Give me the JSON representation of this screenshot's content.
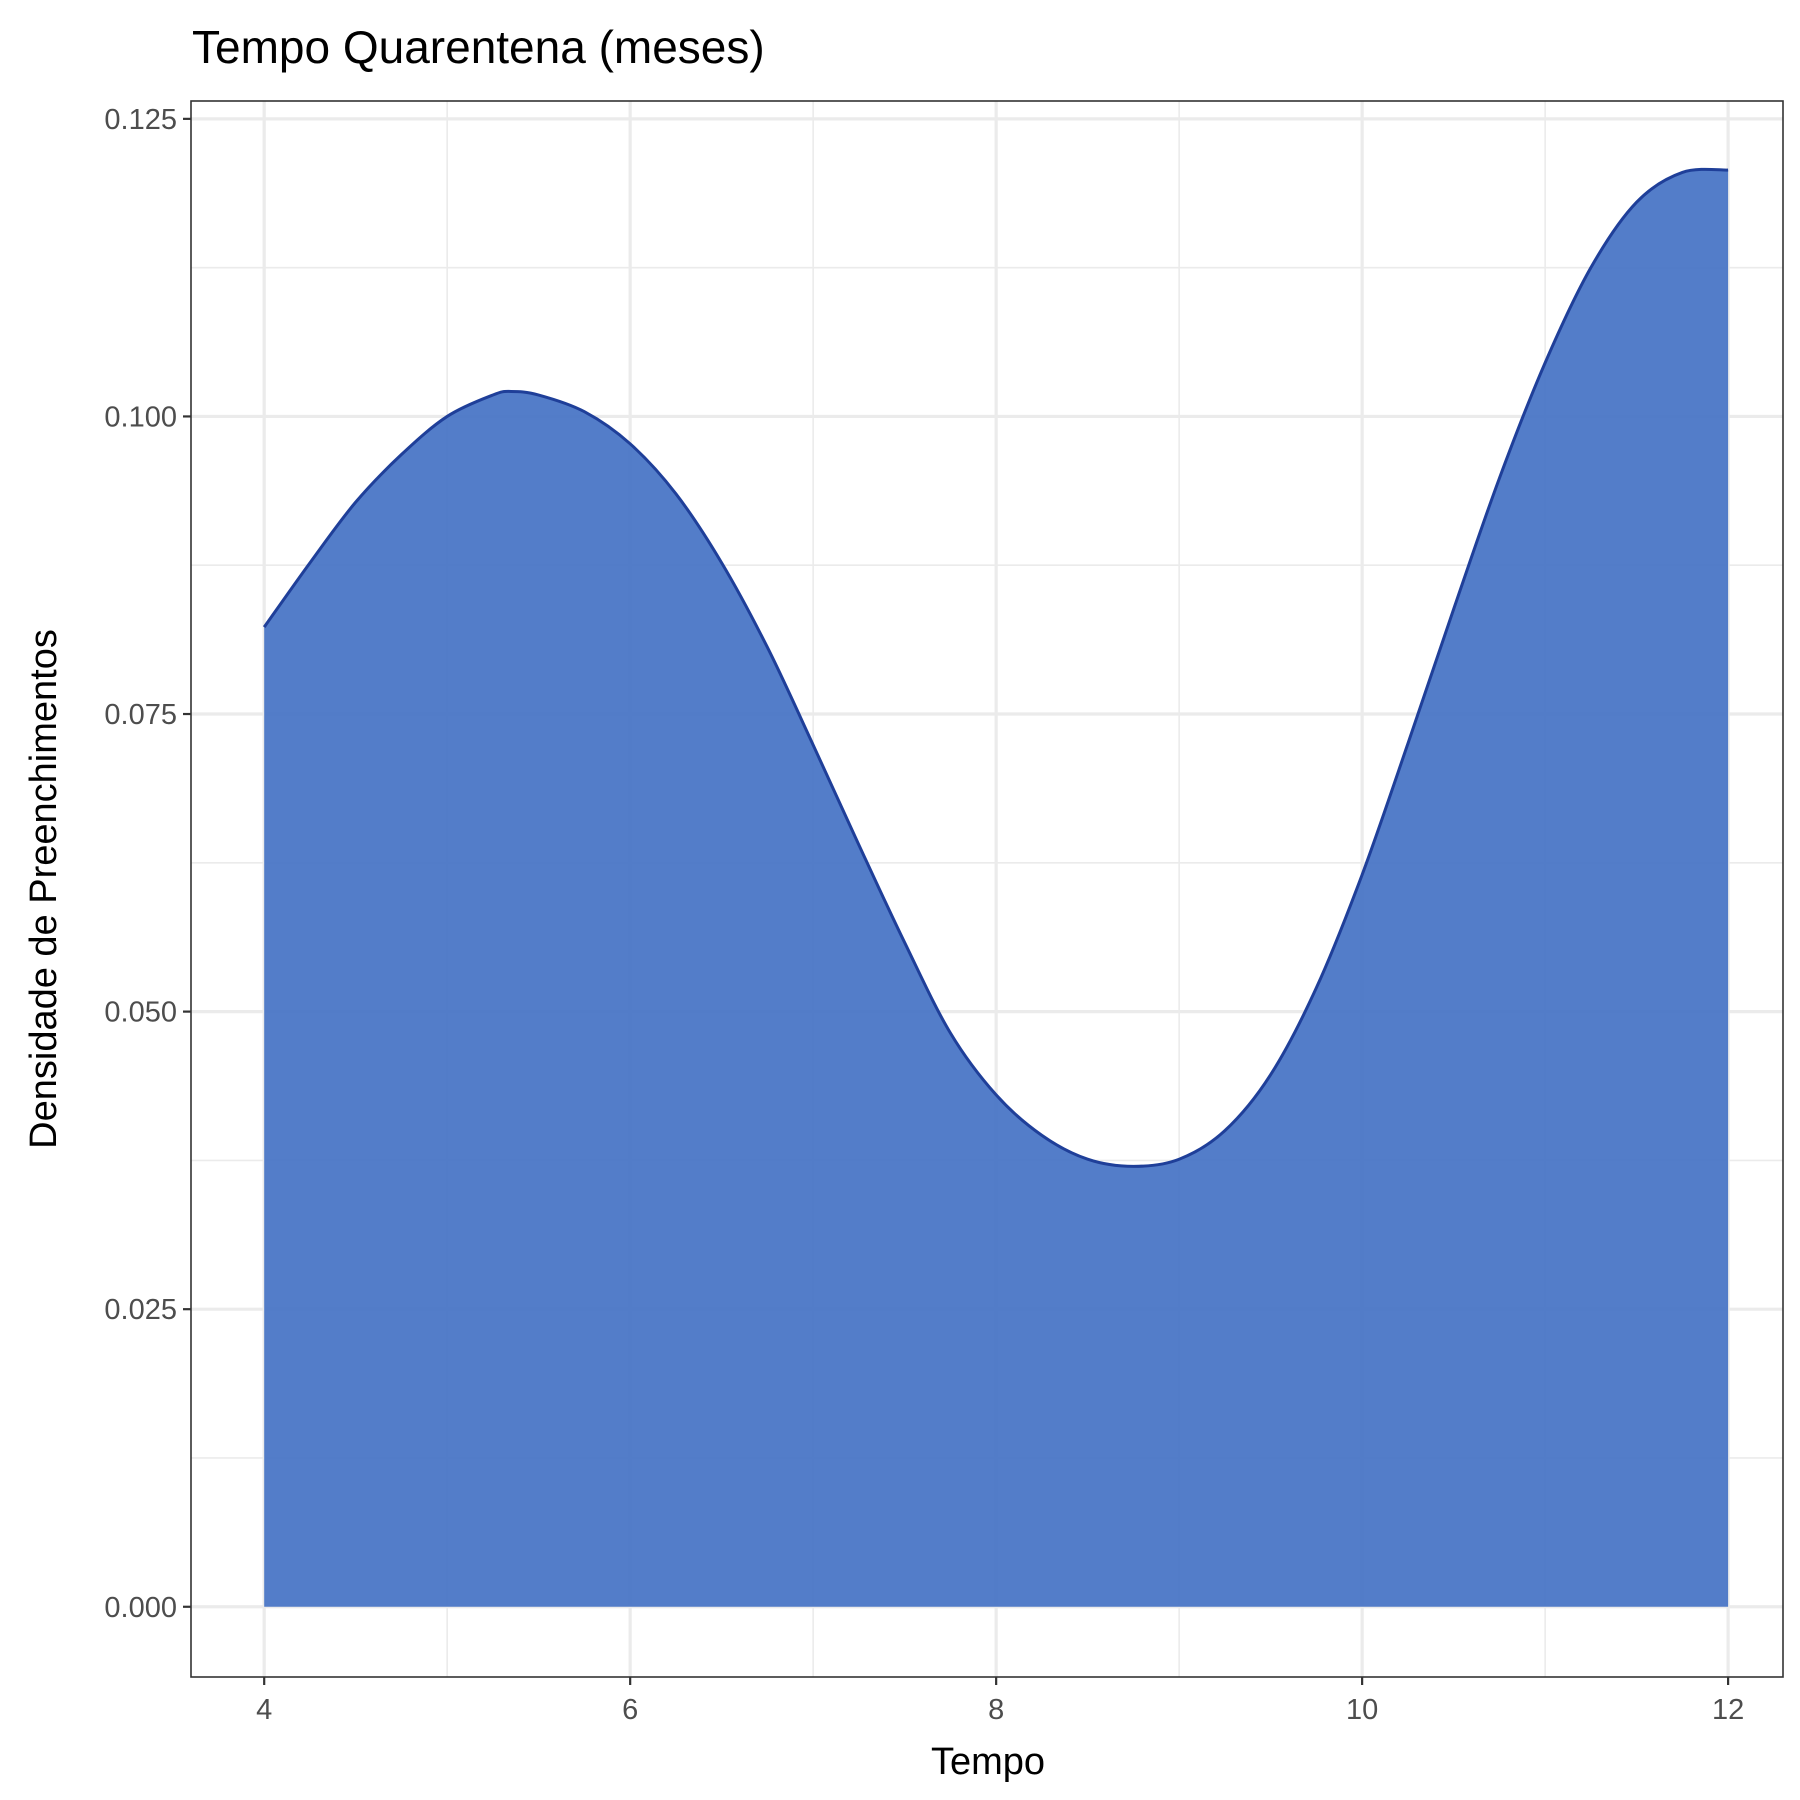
{
  "chart_data": {
    "type": "area",
    "title": "Tempo Quarentena (meses)",
    "xlabel": "Tempo",
    "ylabel": "Densidade de Preenchimentos",
    "xlim": [
      3.6,
      12.3
    ],
    "ylim": [
      -0.0059,
      0.1265
    ],
    "x_ticks": [
      4,
      6,
      8,
      10,
      12
    ],
    "x_tick_labels": [
      "4",
      "6",
      "8",
      "10",
      "12"
    ],
    "x_minor_ticks": [
      5,
      7,
      9,
      11
    ],
    "y_ticks": [
      0,
      0.025,
      0.05,
      0.075,
      0.1,
      0.125
    ],
    "y_tick_labels": [
      "0.000",
      "0.025",
      "0.050",
      "0.075",
      "0.100",
      "0.125"
    ],
    "y_minor_ticks": [
      0.0125,
      0.0375,
      0.0625,
      0.0875,
      0.1125
    ],
    "grid": true,
    "fill_color": "#4472C4",
    "fill_opacity": 0.92,
    "line_color": "#1F3F99",
    "series": [
      {
        "x": [
          4.0,
          4.25,
          4.5,
          4.75,
          5.0,
          5.25,
          5.35,
          5.5,
          5.75,
          6.0,
          6.25,
          6.5,
          6.75,
          7.0,
          7.25,
          7.5,
          7.75,
          8.0,
          8.25,
          8.5,
          8.75,
          9.0,
          9.25,
          9.5,
          9.75,
          10.0,
          10.25,
          10.5,
          10.75,
          11.0,
          11.25,
          11.5,
          11.75,
          12.0
        ],
        "y": [
          0.0823,
          0.0877,
          0.0928,
          0.0968,
          0.1,
          0.1018,
          0.1021,
          0.1018,
          0.1004,
          0.0977,
          0.0935,
          0.0877,
          0.0806,
          0.0724,
          0.064,
          0.0558,
          0.0482,
          0.043,
          0.0396,
          0.0376,
          0.037,
          0.0376,
          0.04,
          0.0447,
          0.052,
          0.0615,
          0.0725,
          0.0838,
          0.0948,
          0.1045,
          0.1125,
          0.118,
          0.1205,
          0.1207
        ]
      }
    ]
  }
}
